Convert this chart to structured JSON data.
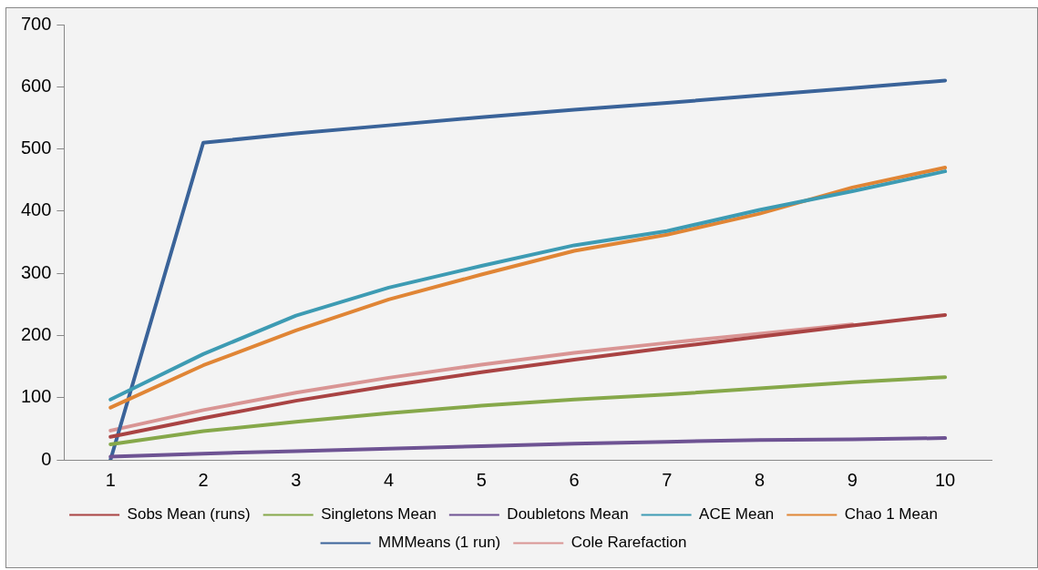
{
  "chart_data": {
    "type": "line",
    "categories": [
      "1",
      "2",
      "3",
      "4",
      "5",
      "6",
      "7",
      "8",
      "9",
      "10"
    ],
    "ylim": [
      0,
      700
    ],
    "yticks": [
      0,
      100,
      200,
      300,
      400,
      500,
      600,
      700
    ],
    "grid": false,
    "legend": "bottom",
    "marker": "none",
    "series": [
      {
        "name": "Sobs Mean (runs)",
        "color": "#a94343",
        "values": [
          37,
          67,
          95,
          119,
          141,
          161,
          180,
          198,
          216,
          233
        ]
      },
      {
        "name": "Singletons Mean",
        "color": "#86a84a",
        "values": [
          25,
          46,
          61,
          75,
          87,
          97,
          105,
          115,
          125,
          133
        ]
      },
      {
        "name": "Doubletons Mean",
        "color": "#6e5393",
        "values": [
          5,
          10,
          14,
          18,
          22,
          26,
          29,
          32,
          33,
          35
        ]
      },
      {
        "name": "ACE Mean",
        "color": "#3d9bb3",
        "values": [
          97,
          170,
          232,
          277,
          312,
          345,
          368,
          402,
          432,
          464
        ]
      },
      {
        "name": "Chao 1 Mean",
        "color": "#e08535",
        "values": [
          84,
          152,
          208,
          258,
          298,
          336,
          362,
          396,
          438,
          470
        ]
      },
      {
        "name": "MMMeans (1 run)",
        "color": "#3a6399",
        "values": [
          0,
          510,
          525,
          538,
          551,
          563,
          574,
          586,
          598,
          610
        ]
      },
      {
        "name": "Cole Rarefaction",
        "color": "#d99594",
        "values": [
          47,
          80,
          108,
          132,
          153,
          172,
          188,
          203,
          218,
          null
        ]
      }
    ]
  }
}
